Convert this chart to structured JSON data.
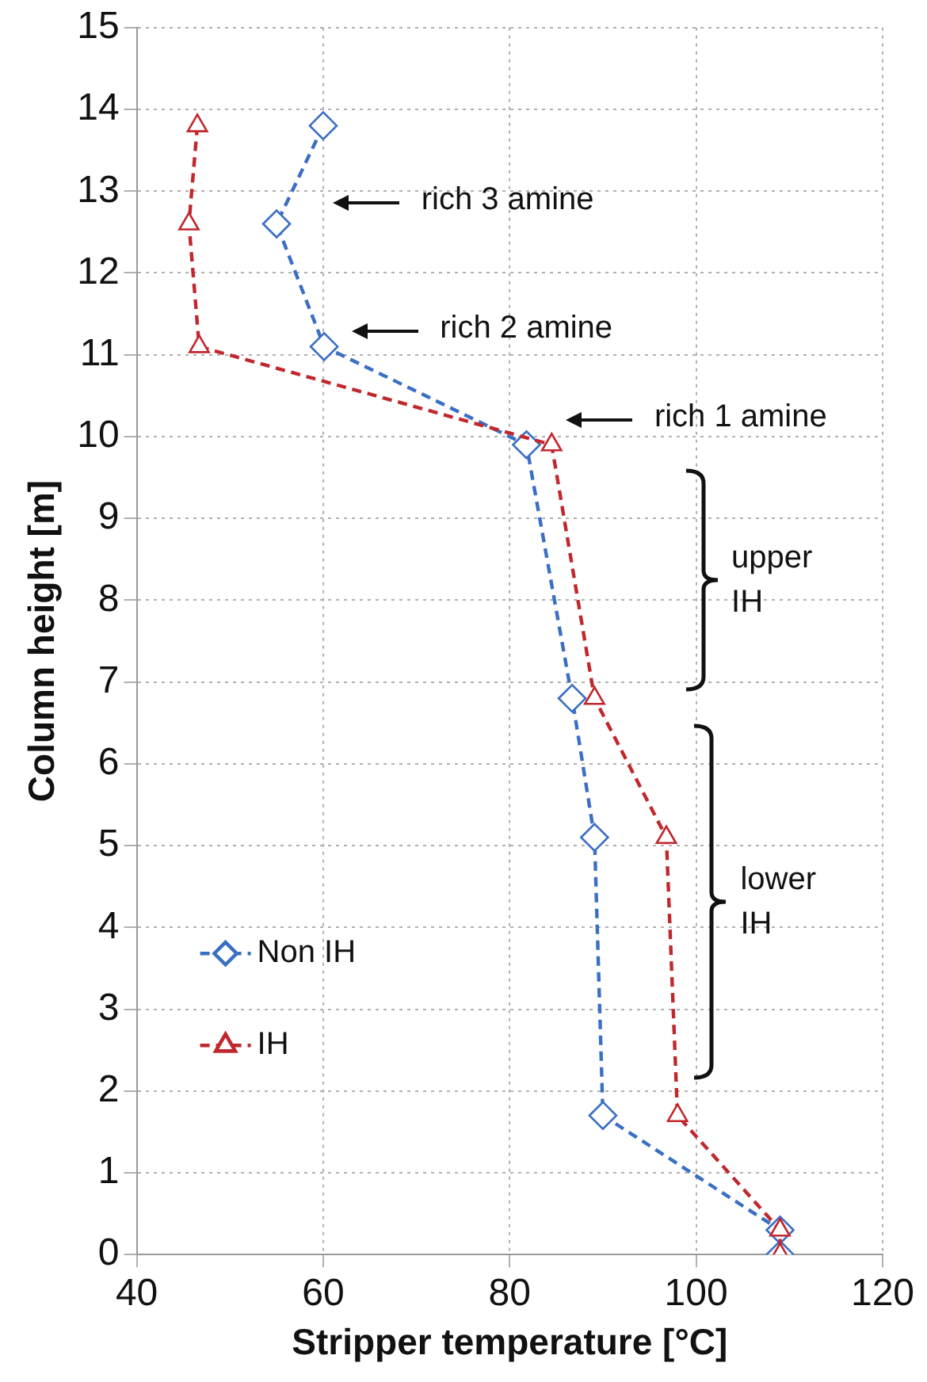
{
  "chart_data": {
    "type": "line",
    "xlabel": "Stripper temperature [°C]",
    "ylabel": "Column height [m]",
    "xlim": [
      40,
      120
    ],
    "xticks": [
      40,
      60,
      80,
      100,
      120
    ],
    "ylim": [
      0,
      15
    ],
    "yticks": [
      0,
      1,
      2,
      3,
      4,
      5,
      6,
      7,
      8,
      9,
      10,
      11,
      12,
      13,
      14,
      15
    ],
    "grid": true,
    "legend": "bottom left",
    "line_style": "dashed",
    "series": [
      {
        "name": "Non IH",
        "color": "#3b6fc4",
        "marker": "diamond",
        "x": [
          60,
          55,
          60.1,
          81.8,
          86.7,
          89.1,
          90,
          109,
          109
        ],
        "values": [
          13.8,
          12.6,
          11.1,
          9.9,
          6.8,
          5.1,
          1.7,
          0.3,
          0
        ]
      },
      {
        "name": "IH",
        "color": "#c0282d",
        "marker": "triangle",
        "x": [
          46.5,
          45.6,
          46.7,
          84.5,
          89.1,
          96.8,
          98,
          109,
          109
        ],
        "values": [
          13.8,
          12.6,
          11.1,
          9.9,
          6.8,
          5.1,
          1.7,
          0.3,
          0
        ]
      }
    ],
    "annotations": [
      "rich 3 amine",
      "rich 2 amine",
      "rich 1 amine",
      "upper IH",
      "lower IH"
    ]
  }
}
